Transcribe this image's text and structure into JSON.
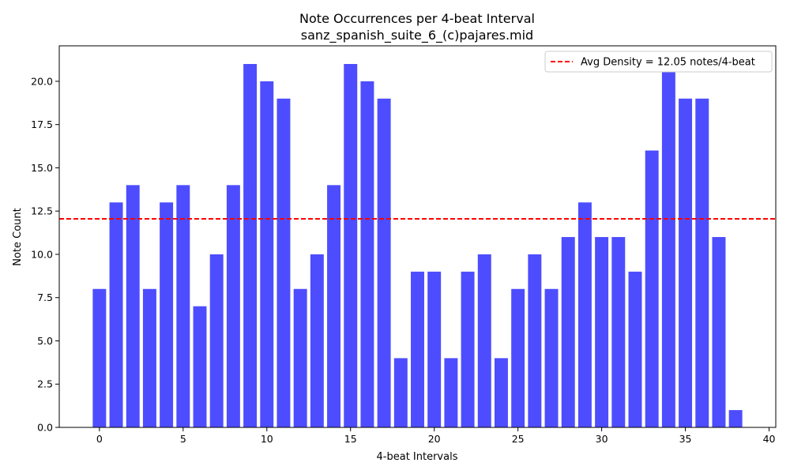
{
  "chart_data": {
    "type": "bar",
    "title": "Note Occurrences per 4-beat Interval",
    "subtitle": "sanz_spanish_suite_6_(c)pajares.mid",
    "xlabel": "4-beat Intervals",
    "ylabel": "Note Count",
    "x": [
      0,
      1,
      2,
      3,
      4,
      5,
      6,
      7,
      8,
      9,
      10,
      11,
      12,
      13,
      14,
      15,
      16,
      17,
      18,
      19,
      20,
      21,
      22,
      23,
      24,
      25,
      26,
      27,
      28,
      29,
      30,
      31,
      32,
      33,
      34,
      35,
      36,
      37,
      38
    ],
    "values": [
      8,
      13,
      14,
      8,
      13,
      14,
      7,
      10,
      14,
      21,
      20,
      19,
      8,
      10,
      14,
      21,
      20,
      19,
      4,
      9,
      9,
      4,
      9,
      10,
      4,
      8,
      10,
      8,
      11,
      13,
      11,
      11,
      9,
      16,
      21,
      19,
      19,
      11,
      1
    ],
    "xlim": [
      -2.4,
      40.4
    ],
    "ylim": [
      0,
      22.05
    ],
    "x_ticks": [
      0,
      5,
      10,
      15,
      20,
      25,
      30,
      35,
      40
    ],
    "y_ticks": [
      0.0,
      2.5,
      5.0,
      7.5,
      10.0,
      12.5,
      15.0,
      17.5,
      20.0
    ],
    "y_tick_labels": [
      "0.0",
      "2.5",
      "5.0",
      "7.5",
      "10.0",
      "12.5",
      "15.0",
      "17.5",
      "20.0"
    ],
    "bar_color": "#4d4dff",
    "average_line": {
      "value": 12.05,
      "label": "Avg Density = 12.05 notes/4-beat",
      "color": "#ff0000",
      "style": "dashed"
    },
    "legend_placement": "top-right",
    "grid": false
  }
}
